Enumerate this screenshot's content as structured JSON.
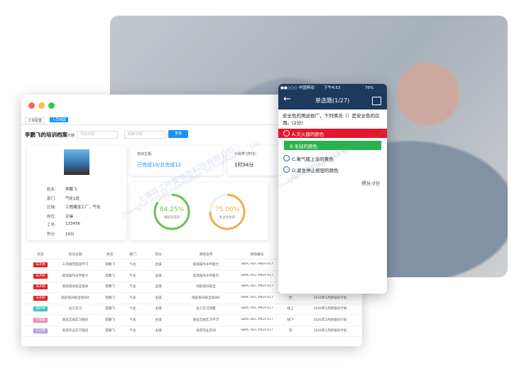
{
  "watermark": {
    "cn": "上海异工同智信息科技有限公司",
    "en": "Shanghai Inroad Information Technology Co., Ltd."
  },
  "desktop": {
    "tabs": [
      "工单配置",
      "人员档案"
    ],
    "title": "李鹏飞的培训档案",
    "date_label": "日期",
    "start_placeholder": "开始日期",
    "end_placeholder": "结束日期",
    "query_button": "查询",
    "profile": [
      [
        "姓名:",
        "李鹏飞"
      ],
      [
        "部门:",
        "气化1班"
      ],
      [
        "区域:",
        "工程建设工厂，气化"
      ],
      [
        "岗位:",
        "主操"
      ],
      [
        "工号:",
        "123456"
      ],
      [
        "积分:",
        "19分"
      ]
    ],
    "stats": [
      {
        "label": "培训主题:",
        "value": "已完成10/总完成12"
      },
      {
        "label": "计划学习时长:",
        "value": "1时34分"
      }
    ],
    "rings": [
      {
        "value": 84.25,
        "label": "84.25%",
        "caption": "课程完成率",
        "color": "#6cc24a"
      },
      {
        "value": 75,
        "label": "75.00%",
        "caption": "考试合格率",
        "color": "#f0ad4e"
      }
    ],
    "table": {
      "headers": [
        "状态",
        "培训主题",
        "姓名",
        "部门",
        "岗位",
        "课程名称",
        "课程编号",
        "是否必修",
        "计划完成时间"
      ],
      "rows": [
        {
          "status": "未开始",
          "status_color": "#e02020",
          "cells": [
            "工作规范提高学习",
            "李鹏飞",
            "气化",
            "主操",
            "提高操作水平能力",
            "SBRC-REC-MEH-017",
            "否",
            "2020年1月新培训计划"
          ]
        },
        {
          "status": "未开始",
          "status_color": "#e02020",
          "cells": [
            "提高操作水平能力",
            "李鹏飞",
            "气化",
            "主操",
            "提高操作水平能力",
            "SBRC-REC-MEH-017",
            "否",
            "2020年1月新培训计划"
          ]
        },
        {
          "status": "未开始",
          "status_color": "#e02020",
          "cells": [
            "岗前培训安全培训",
            "李鹏飞",
            "气化",
            "主操",
            "岗前培训安全",
            "SBRC-REC-MEH-017",
            "否",
            "2020年1月新培训计划"
          ]
        },
        {
          "status": "未开始",
          "status_color": "#e02020",
          "cells": [
            "岗前培训安全培训4",
            "李鹏飞",
            "气化",
            "主操",
            "岗前培训安全培训4",
            "SBRC-REC-MEH-017",
            "否",
            "2020年1月新培训计划"
          ]
        },
        {
          "status": "进行中",
          "status_color": "#3cc6c0",
          "cells": [
            "化工实习",
            "李鹏飞",
            "气化",
            "主操",
            "化工实习测量",
            "SBRC-REC-MEH-017",
            "线上",
            "2020年1月新培训计划"
          ]
        },
        {
          "status": "已完成",
          "status_color": "#f08cb0",
          "cells": [
            "岗位实践实习培训",
            "李鹏飞",
            "气化",
            "主操",
            "岗位实践实习学习",
            "SBRC-REC-MEH-017",
            "线下",
            "2020年1月新培训计划"
          ]
        },
        {
          "status": "已过期",
          "status_color": "#b49ae8",
          "cells": [
            "高空作业实习培训",
            "李鹏飞",
            "气化",
            "主操",
            "高空作业实训",
            "SBRC-REC-MEH-017",
            "无",
            "2020年1月新培训计划"
          ]
        }
      ]
    }
  },
  "phone": {
    "carrier": "●●○○○ 中国移动",
    "time": "下午4:53",
    "battery": "76%",
    "title": "单选题(1/27)",
    "question": "安全色的用途很广，下列情况（）是安全色的应用。(2分)",
    "options": [
      "A.灭火器的颜色",
      "B.毛毡的颜色",
      "C.氧气瓶上涂的黄色",
      "D.紧急停止按钮的颜色"
    ],
    "score": "得分:0分"
  }
}
